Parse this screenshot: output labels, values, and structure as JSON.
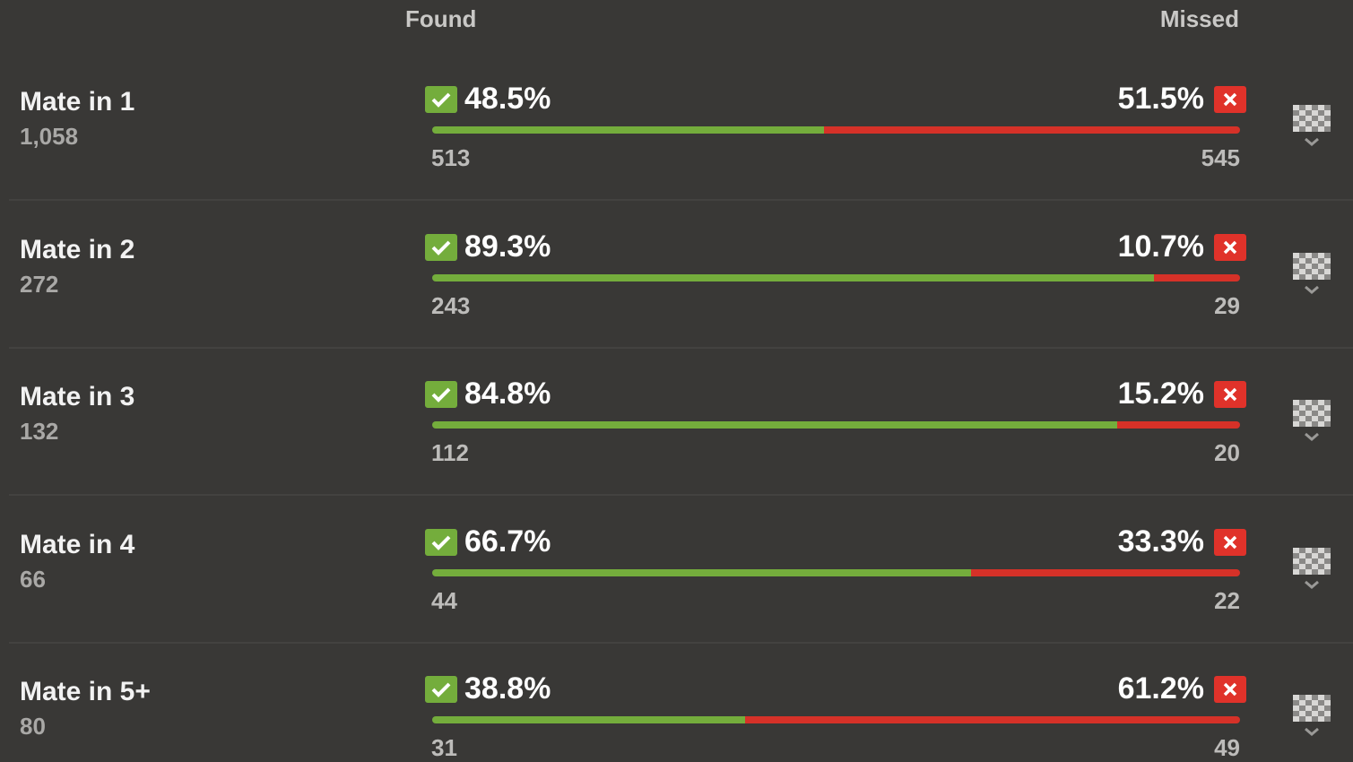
{
  "header": {
    "found": "Found",
    "missed": "Missed"
  },
  "rows": [
    {
      "label": "Mate in 1",
      "total": "1,058",
      "found_pct": "48.5%",
      "missed_pct": "51.5%",
      "found": 513,
      "missed": 545
    },
    {
      "label": "Mate in 2",
      "total": "272",
      "found_pct": "89.3%",
      "missed_pct": "10.7%",
      "found": 243,
      "missed": 29
    },
    {
      "label": "Mate in 3",
      "total": "132",
      "found_pct": "84.8%",
      "missed_pct": "15.2%",
      "found": 112,
      "missed": 20
    },
    {
      "label": "Mate in 4",
      "total": "66",
      "found_pct": "66.7%",
      "missed_pct": "33.3%",
      "found": 44,
      "missed": 22
    },
    {
      "label": "Mate in 5+",
      "total": "80",
      "found_pct": "38.8%",
      "missed_pct": "61.2%",
      "found": 31,
      "missed": 49
    }
  ]
}
